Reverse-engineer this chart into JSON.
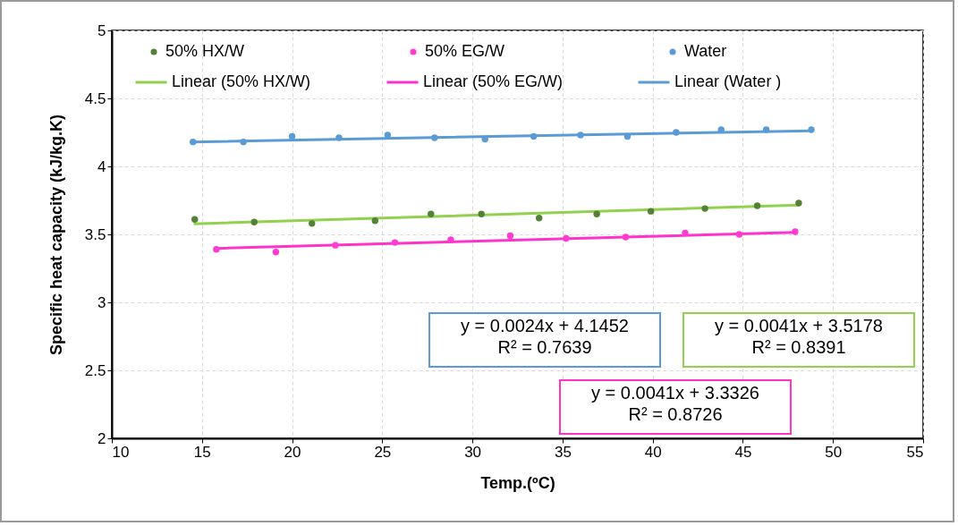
{
  "chart_data": {
    "type": "scatter",
    "xlabel": "Temp.(ºC)",
    "ylabel": "Specific heat capacity  (kJ/kg.K)",
    "xlim": [
      10,
      55
    ],
    "xticks": [
      10,
      15,
      20,
      25,
      30,
      35,
      40,
      45,
      50,
      55
    ],
    "ylim": [
      2,
      5
    ],
    "yticks": [
      2,
      2.5,
      3,
      3.5,
      4,
      4.5,
      5
    ],
    "grid": true,
    "legend": "top",
    "marker": "circle",
    "series": [
      {
        "name": "50% HX/W",
        "color": "#548235",
        "x": [
          14.6,
          17.9,
          21.1,
          24.6,
          27.7,
          30.5,
          33.7,
          36.9,
          39.9,
          42.9,
          45.8,
          48.1
        ],
        "values": [
          3.61,
          3.59,
          3.58,
          3.6,
          3.65,
          3.65,
          3.62,
          3.65,
          3.67,
          3.69,
          3.71,
          3.73
        ]
      },
      {
        "name": "50% EG/W",
        "color": "#ff3bd0",
        "x": [
          15.8,
          19.1,
          22.4,
          25.7,
          28.8,
          32.1,
          35.2,
          38.5,
          41.8,
          44.8,
          47.9
        ],
        "values": [
          3.39,
          3.37,
          3.42,
          3.44,
          3.46,
          3.49,
          3.47,
          3.48,
          3.51,
          3.5,
          3.52
        ]
      },
      {
        "name": "Water",
        "color": "#5b9bd5",
        "x": [
          14.5,
          17.3,
          20,
          22.6,
          25.3,
          27.9,
          30.7,
          33.4,
          36,
          38.6,
          41.3,
          43.8,
          46.3,
          48.8
        ],
        "values": [
          4.18,
          4.18,
          4.22,
          4.21,
          4.23,
          4.21,
          4.2,
          4.22,
          4.23,
          4.22,
          4.25,
          4.27,
          4.27,
          4.27
        ]
      },
      {
        "name": "Linear (50% HX/W)",
        "type": "line",
        "marker": "none",
        "line_style": "solid",
        "color": "#92d050",
        "x": [
          14.6,
          48.1
        ],
        "values": [
          3.578,
          3.715
        ]
      },
      {
        "name": "Linear (50% EG/W)",
        "type": "line",
        "marker": "none",
        "line_style": "solid",
        "color": "#ff33cc",
        "x": [
          15.8,
          47.9
        ],
        "values": [
          3.397,
          3.514
        ]
      },
      {
        "name": "Linear (Water )",
        "type": "line",
        "marker": "none",
        "line_style": "solid",
        "color": "#5b9bd5",
        "x": [
          14.5,
          48.8
        ],
        "values": [
          4.18,
          4.262
        ]
      }
    ],
    "annotations": [
      "y = 0.0024x + 4.1452\nR² = 0.7639",
      "y = 0.0041x + 3.5178\nR² = 0.8391",
      "y = 0.0041x + 3.3326\nR² = 0.8726"
    ]
  }
}
